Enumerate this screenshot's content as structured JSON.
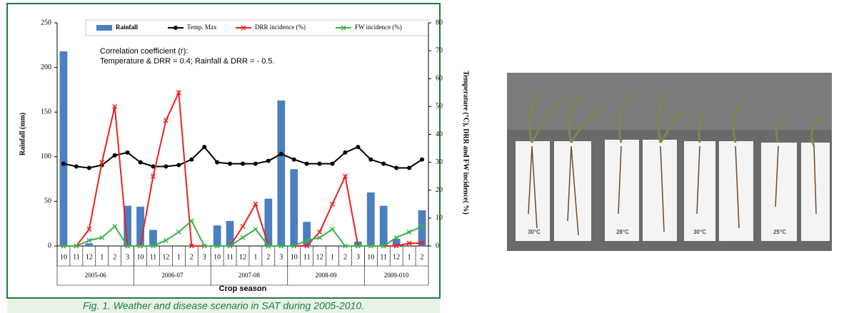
{
  "chart_data": {
    "type": "combo",
    "title": "Fig. 1. Weather and disease scenario in SAT during 2005-2010.",
    "annotations": [
      "Correlation coefficient (r):",
      "Temperature & DRR = 0.4; Rainfall & DRR = - 0.5."
    ],
    "xlabel": "Crop season",
    "ylabel": "Rainfall (mm)",
    "y2label": "Temperature (°C), DRR and FW incidence( %)",
    "categories": [
      "10",
      "11",
      "12",
      "1",
      "2",
      "3",
      "10",
      "11",
      "12",
      "1",
      "2",
      "3",
      "10",
      "11",
      "12",
      "1",
      "2",
      "3",
      "10",
      "11",
      "12",
      "1",
      "2",
      "3",
      "10",
      "11",
      "12",
      "1",
      "2"
    ],
    "groups": [
      "2005-06",
      "2006-07",
      "2007-08",
      "2008-09",
      "2009-010"
    ],
    "ylim": [
      0,
      250
    ],
    "yticks": [
      0,
      50,
      100,
      150,
      200,
      250
    ],
    "y2lim": [
      0,
      80
    ],
    "y2ticks": [
      0,
      10,
      20,
      30,
      40,
      50,
      60,
      70,
      80
    ],
    "grid": false,
    "series": [
      {
        "name": "Rainfall",
        "type": "bar",
        "color": "#4a7fc1",
        "values": [
          218,
          0,
          3,
          0,
          0,
          45,
          44,
          18,
          0,
          0,
          0,
          0,
          23,
          28,
          0,
          0,
          53,
          163,
          86,
          27,
          0,
          0,
          0,
          5,
          60,
          45,
          8,
          0,
          40
        ]
      },
      {
        "name": "Temp. Max",
        "type": "line",
        "axis": "y2",
        "marker": "circle",
        "color": "#000000",
        "values": [
          29.5,
          28.5,
          28,
          29,
          32.5,
          33.5,
          30,
          28.5,
          28.5,
          29,
          31,
          35.5,
          30,
          29.5,
          29.5,
          29.5,
          30.5,
          33,
          31,
          29.5,
          29.5,
          29.5,
          33.5,
          35.5,
          31,
          29.5,
          28,
          28,
          31
        ]
      },
      {
        "name": "DRR incidence (%)",
        "type": "line",
        "axis": "y2",
        "marker": "x",
        "color": "#ee2020",
        "values": [
          0,
          0,
          6,
          30,
          50,
          0,
          0,
          25,
          45,
          55,
          0,
          0,
          0,
          0,
          7,
          15,
          0,
          0,
          0,
          0,
          5,
          15,
          25,
          0,
          0,
          0,
          0,
          1,
          1
        ]
      },
      {
        "name": "FW incidence (%)",
        "type": "line",
        "axis": "y2",
        "marker": "x",
        "color": "#3cb04a",
        "values": [
          0,
          0,
          2,
          3,
          7,
          0,
          0,
          0,
          2,
          5,
          9,
          0,
          0,
          0,
          3,
          6,
          0,
          0,
          0,
          2,
          3,
          6,
          0,
          0,
          0,
          0,
          3,
          5,
          7
        ]
      }
    ]
  },
  "photo": {
    "labels": [
      "30°C",
      "28°C",
      "30°C",
      "25°C"
    ]
  }
}
